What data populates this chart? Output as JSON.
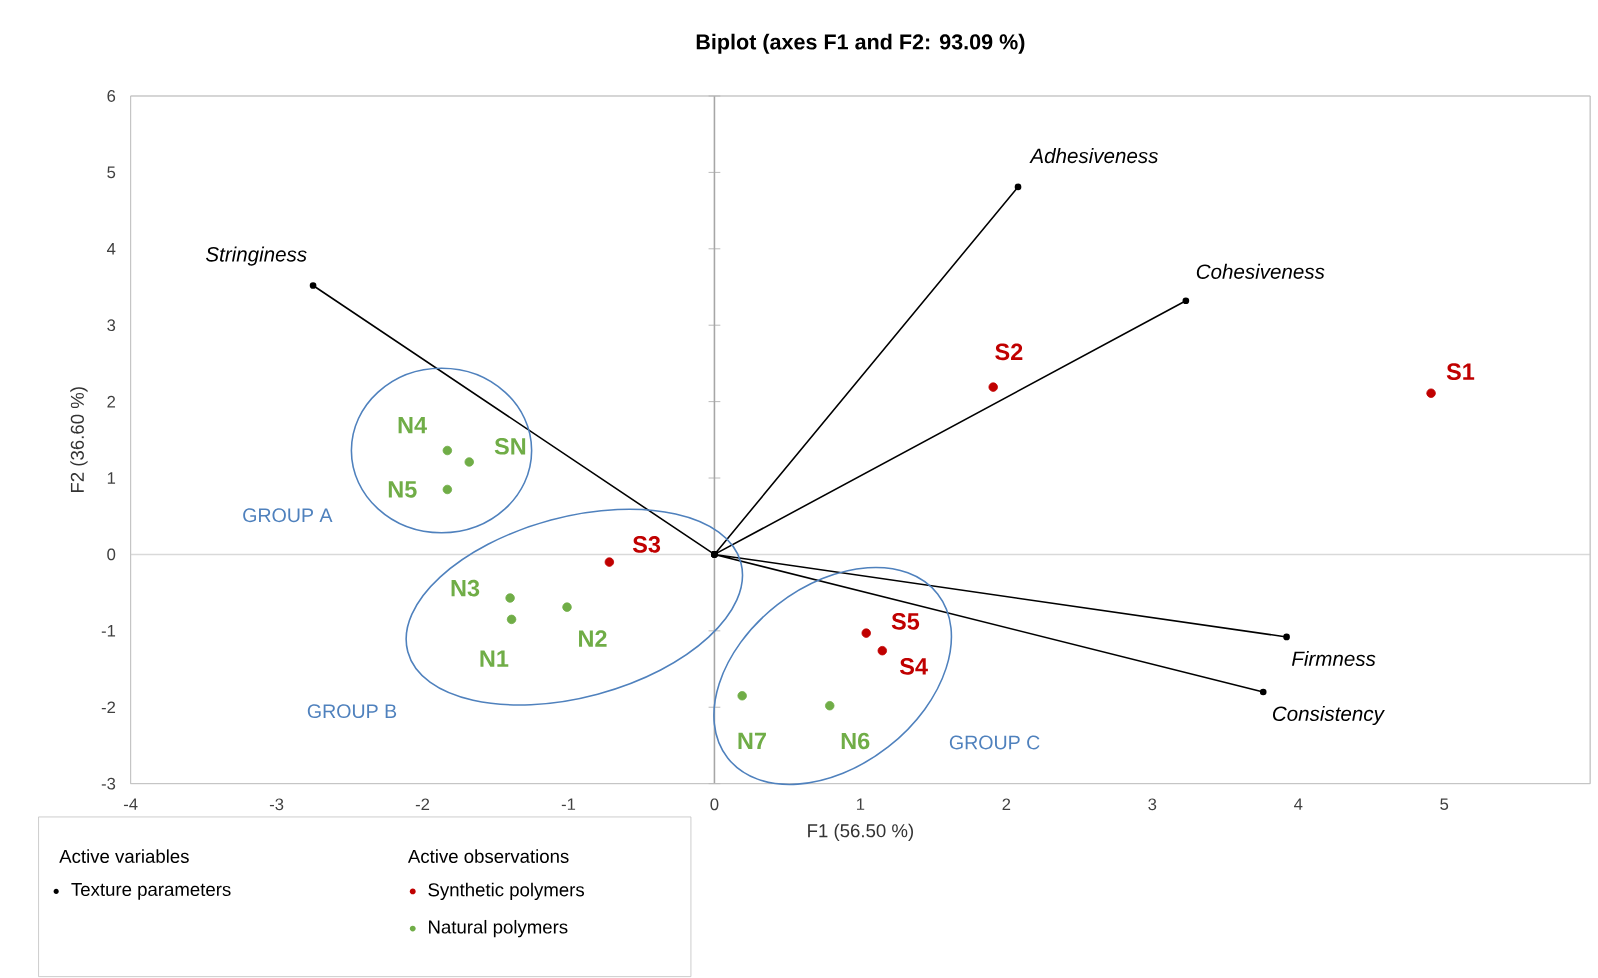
{
  "chart_data": {
    "type": "scatter",
    "title": "Biplot (axes F1 and F2: 93.09 %)",
    "xlabel": "F1 (56.50 %)",
    "ylabel": "F2 (36.60 %)",
    "legend_title": "Active variables",
    "legend": "bottom left",
    "marker": "circle",
    "grid": false,
    "ref_lines": [
      {
        "axis": "x",
        "value": 0,
        "color": "#a6a6a6"
      },
      {
        "axis": "y",
        "value": 0,
        "color": "#d9d9d9"
      }
    ],
    "xlim": [
      -4,
      6
    ],
    "ylim": [
      -3,
      6
    ],
    "xticks": [
      -4,
      -3,
      -2,
      -1,
      0,
      1,
      2,
      3,
      4,
      5
    ],
    "yticks": [
      -3,
      -2,
      -1,
      0,
      1,
      2,
      3,
      4,
      5,
      6
    ],
    "series": [
      {
        "name": "Texture parameters",
        "type": "line",
        "color": "#000000",
        "x": [
          0,
          -2.75,
          null,
          0,
          2.08,
          null,
          0,
          3.23,
          null,
          0,
          3.92,
          null,
          0,
          3.76
        ],
        "values": [
          0,
          3.52,
          null,
          0,
          4.81,
          null,
          0,
          3.32,
          null,
          0,
          -1.08,
          null,
          0,
          -1.8
        ]
      },
      {
        "name": "Synthetic polymers",
        "color": "#c00000",
        "x": [
          4.91,
          1.91,
          -0.72,
          1.15,
          1.04
        ],
        "values": [
          2.11,
          2.19,
          -0.1,
          -1.26,
          -1.03
        ]
      },
      {
        "name": "Natural polymers",
        "color": "#70ad47",
        "x": [
          -1.83,
          -1.68,
          -1.83,
          -1.4,
          -1.39,
          -1.01,
          0.19,
          0.79
        ],
        "values": [
          1.36,
          1.21,
          0.85,
          -0.57,
          -0.85,
          -0.69,
          -1.85,
          -1.98
        ]
      }
    ],
    "annotations": [
      {
        "text": "Stringiness",
        "x": -2.75,
        "y": 3.52
      },
      {
        "text": "Adhesiveness",
        "x": 2.08,
        "y": 4.81
      },
      {
        "text": "Cohesiveness",
        "x": 3.23,
        "y": 3.32
      },
      {
        "text": "Firmness",
        "x": 3.92,
        "y": -1.08
      },
      {
        "text": "Consistency",
        "x": 3.76,
        "y": -1.8
      },
      {
        "text": "S1",
        "x": 4.91,
        "y": 2.11
      },
      {
        "text": "S2",
        "x": 1.91,
        "y": 2.19
      },
      {
        "text": "S3",
        "x": -0.72,
        "y": -0.1
      },
      {
        "text": "S4",
        "x": 1.15,
        "y": -1.26
      },
      {
        "text": "S5",
        "x": 1.04,
        "y": -1.03
      },
      {
        "text": "N4",
        "x": -1.83,
        "y": 1.36
      },
      {
        "text": "SN",
        "x": -1.68,
        "y": 1.21
      },
      {
        "text": "N5",
        "x": -1.83,
        "y": 0.85
      },
      {
        "text": "N3",
        "x": -1.4,
        "y": -0.57
      },
      {
        "text": "N1",
        "x": -1.39,
        "y": -0.85
      },
      {
        "text": "N2",
        "x": -1.01,
        "y": -0.69
      },
      {
        "text": "N7",
        "x": 0.19,
        "y": -1.85
      },
      {
        "text": "N6",
        "x": 0.79,
        "y": -1.98
      },
      "GROUP A",
      "GROUP B",
      "GROUP C",
      "Active observations"
    ]
  }
}
